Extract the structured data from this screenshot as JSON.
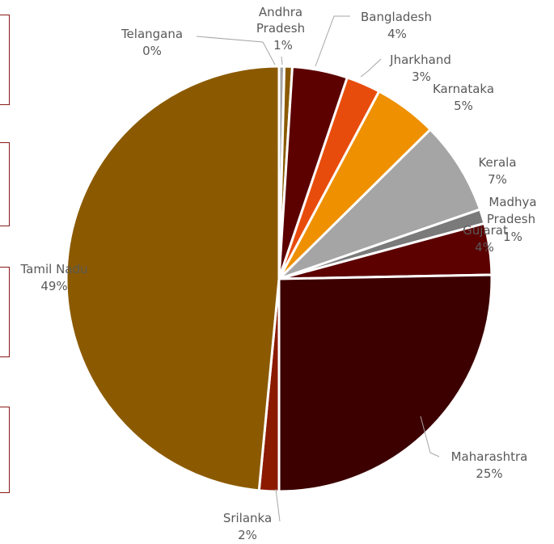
{
  "chart_data": {
    "type": "pie",
    "title": "",
    "categories": [
      "Telangana",
      "Andhra Pradesh",
      "Bangladesh",
      "Jharkhand",
      "Karnataka",
      "Kerala",
      "Madhya Pradesh",
      "Gujarat",
      "Maharashtra",
      "Srilanka",
      "Tamil Nadu"
    ],
    "values": [
      0.4,
      0.6,
      4.2,
      2.6,
      4.8,
      7.1,
      1.1,
      3.9,
      25.3,
      1.5,
      48.5
    ],
    "labels": [
      "0%",
      "1%",
      "4%",
      "3%",
      "5%",
      "7%",
      "1%",
      "4%",
      "25%",
      "2%",
      "49%"
    ],
    "colors": [
      "#a5a5a5",
      "#8b5a00",
      "#5c0000",
      "#e84c0c",
      "#ee9000",
      "#a5a5a5",
      "#7a7a7a",
      "#5c0000",
      "#3d0000",
      "#8b1a00",
      "#8b5a00"
    ],
    "legend": "none"
  }
}
